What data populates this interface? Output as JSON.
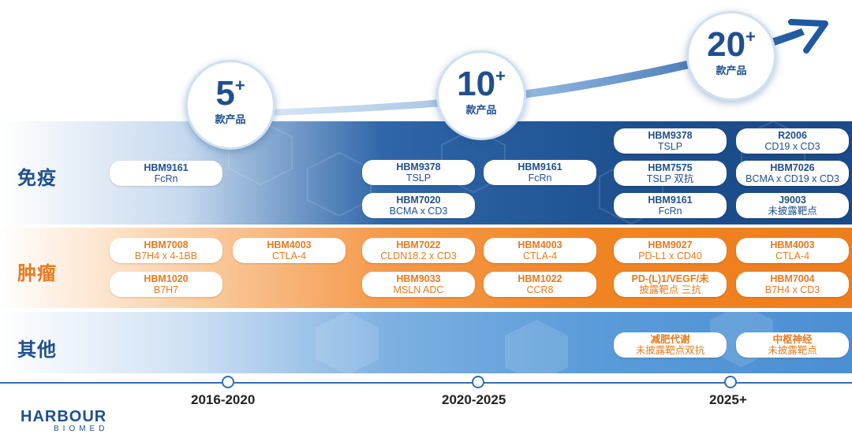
{
  "growth": {
    "bubbles": [
      {
        "number": "5",
        "plus": "+",
        "label": "款产品"
      },
      {
        "number": "10",
        "plus": "+",
        "label": "款产品"
      },
      {
        "number": "20",
        "plus": "+",
        "label": "款产品"
      }
    ]
  },
  "rows": {
    "immune": "免疫",
    "oncology": "肿瘤",
    "other": "其他"
  },
  "products": {
    "immune": [
      {
        "code": "HBM9161",
        "target": "FcRn"
      },
      {
        "code": "HBM9378",
        "target": "TSLP"
      },
      {
        "code": "HBM7020",
        "target": "BCMA x CD3"
      },
      {
        "code": "HBM9161",
        "target": "FcRn"
      },
      {
        "code": "HBM9378",
        "target": "TSLP"
      },
      {
        "code": "HBM7575",
        "target": "TSLP 双抗"
      },
      {
        "code": "HBM9161",
        "target": "FcRn"
      },
      {
        "code": "R2006",
        "target": "CD19 x CD3"
      },
      {
        "code": "HBM7026",
        "target": "BCMA x CD19 x CD3"
      },
      {
        "code": "J9003",
        "target": "未披露靶点"
      }
    ],
    "oncology": [
      {
        "code": "HBM7008",
        "target": "B7H4 x 4-1BB"
      },
      {
        "code": "HBM1020",
        "target": "B7H7"
      },
      {
        "code": "HBM4003",
        "target": "CTLA-4"
      },
      {
        "code": "HBM7022",
        "target": "CLDN18.2 x CD3"
      },
      {
        "code": "HBM9033",
        "target": "MSLN ADC"
      },
      {
        "code": "HBM4003",
        "target": "CTLA-4"
      },
      {
        "code": "HBM1022",
        "target": "CCR8"
      },
      {
        "code": "HBM9027",
        "target": "PD-L1 x CD40"
      },
      {
        "code": "PD-(L)1/VEGF/未",
        "target": "披露靶点 三抗"
      },
      {
        "code": "HBM4003",
        "target": "CTLA-4"
      },
      {
        "code": "HBM7004",
        "target": "B7H4 x CD3"
      }
    ],
    "other": [
      {
        "code": "减肥代谢",
        "target": "未披露靶点双抗"
      },
      {
        "code": "中枢神经",
        "target": "未披露靶点"
      }
    ]
  },
  "timeline": {
    "periods": [
      "2016-2020",
      "2020-2025",
      "2025+"
    ]
  },
  "logo": {
    "line1": "HARBOUR",
    "line2": "BIOMED"
  },
  "colors": {
    "navy": "#1f4f8f",
    "orange": "#ea7a1e",
    "light_blue": "#4b8fd3"
  }
}
